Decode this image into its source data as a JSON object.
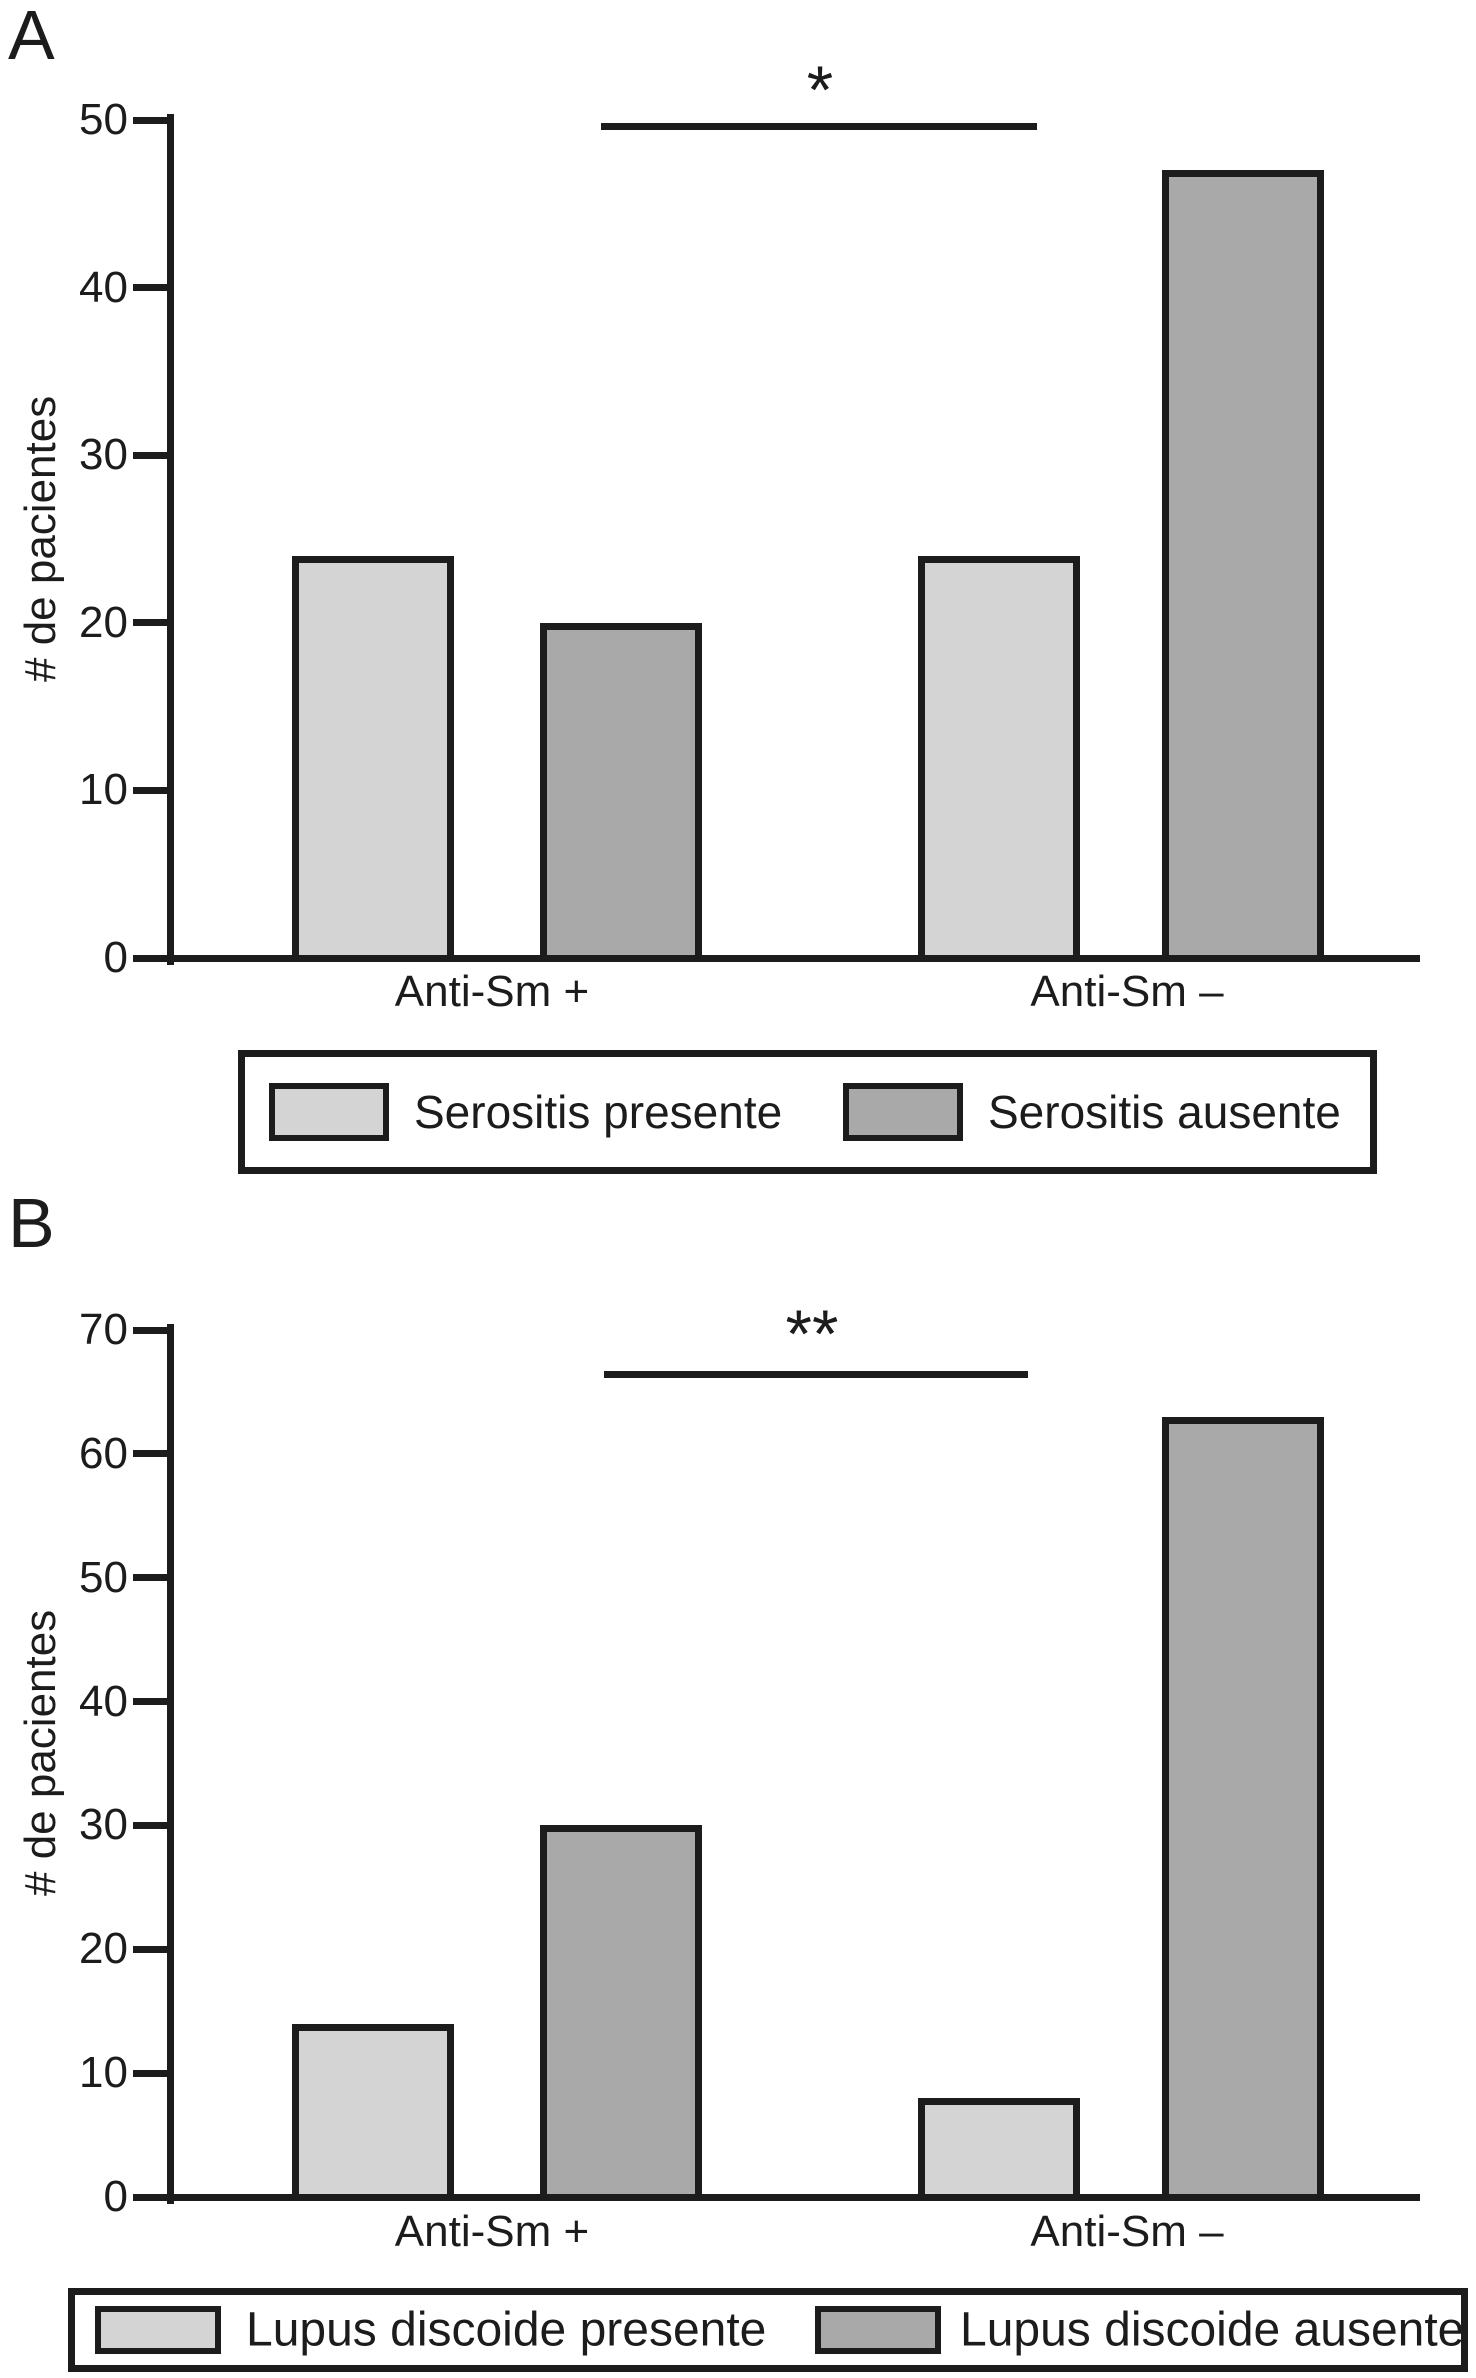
{
  "figure": {
    "colors": {
      "background": "#ffffff",
      "ink": "#1c1c1c",
      "light_fill": "#d4d4d4",
      "dark_fill": "#a9a9a9"
    }
  },
  "chart_data": [
    {
      "type": "bar",
      "panel_label": "A",
      "title": "",
      "ylabel": "# de pacientes",
      "xlabel": "",
      "categories": [
        "Anti-Sm +",
        "Anti-Sm –"
      ],
      "series": [
        {
          "name": "Serositis presente",
          "swatch": "light",
          "values": [
            24,
            24
          ]
        },
        {
          "name": "Serositis ausente",
          "swatch": "dark",
          "values": [
            20,
            47
          ]
        }
      ],
      "ylim": [
        0,
        50
      ],
      "yticks": [
        0,
        10,
        20,
        30,
        40,
        50
      ],
      "grid": false,
      "legend_position": "boxed-below-axis",
      "significance": {
        "text": "*",
        "between": [
          "Anti-Sm +",
          "Anti-Sm –"
        ]
      }
    },
    {
      "type": "bar",
      "panel_label": "B",
      "title": "",
      "ylabel": "# de pacientes",
      "xlabel": "",
      "categories": [
        "Anti-Sm +",
        "Anti-Sm –"
      ],
      "series": [
        {
          "name": "Lupus discoide presente",
          "swatch": "light",
          "values": [
            14,
            8
          ]
        },
        {
          "name": "Lupus discoide ausente",
          "swatch": "dark",
          "values": [
            30,
            63
          ]
        }
      ],
      "ylim": [
        0,
        70
      ],
      "yticks": [
        0,
        10,
        20,
        30,
        40,
        50,
        60,
        70
      ],
      "grid": false,
      "legend_position": "boxed-below-axis",
      "significance": {
        "text": "**",
        "between": [
          "Anti-Sm +",
          "Anti-Sm –"
        ]
      }
    }
  ]
}
